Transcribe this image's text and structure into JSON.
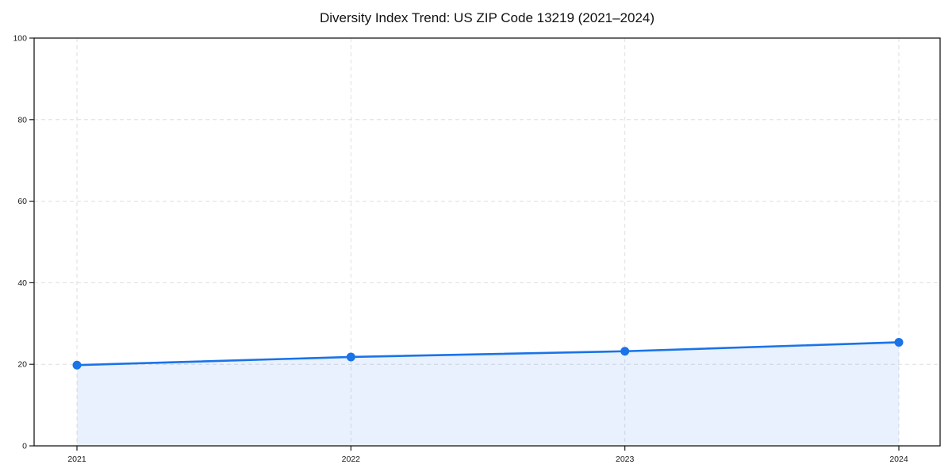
{
  "figure": {
    "background": "#ffffff"
  },
  "chart_data": {
    "type": "line",
    "title": "Diversity Index Trend: US ZIP Code 13219 (2021–2024)",
    "x": [
      2021,
      2022,
      2023,
      2024
    ],
    "xtick_labels": [
      "2021",
      "2022",
      "2023",
      "2024"
    ],
    "series": [
      {
        "name": "Diversity Index",
        "values": [
          19.8,
          21.8,
          23.2,
          25.4
        ]
      }
    ],
    "xlabel": "",
    "ylabel": "",
    "ylim": [
      0,
      100
    ],
    "yticks": [
      0,
      20,
      40,
      60,
      80,
      100
    ],
    "grid": true,
    "grid_style": "dashed",
    "legend_position": "none",
    "area_fill": true,
    "marker": "circle",
    "colors": {
      "line": "#1a73e8",
      "marker": "#1a73e8",
      "fill": "rgba(26,115,232,0.10)",
      "grid": "#dedede",
      "spine": "#1a1a1a",
      "tick_label": "#1a1a1a",
      "title": "#111111",
      "background": "#ffffff"
    }
  }
}
